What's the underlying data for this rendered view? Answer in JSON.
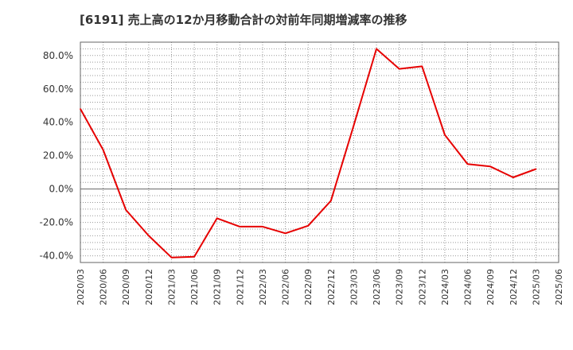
{
  "chart_data": {
    "type": "line",
    "title": "[6191]  売上高の12か月移動合計の対前年同期増減率の推移",
    "xlabel": "",
    "ylabel": "",
    "ylim": [
      -44,
      88
    ],
    "y_ticks": [
      -40,
      -20,
      0,
      20,
      40,
      60,
      80
    ],
    "y_tick_labels": [
      "-40.0%",
      "-20.0%",
      "0.0%",
      "20.0%",
      "40.0%",
      "60.0%",
      "80.0%"
    ],
    "categories": [
      "2020/03",
      "2020/06",
      "2020/09",
      "2020/12",
      "2021/03",
      "2021/06",
      "2021/09",
      "2021/12",
      "2022/03",
      "2022/06",
      "2022/09",
      "2022/12",
      "2023/03",
      "2023/06",
      "2023/09",
      "2023/12",
      "2024/03",
      "2024/06",
      "2024/09",
      "2024/12",
      "2025/03",
      "2025/06"
    ],
    "grid": true,
    "series": [
      {
        "name": "増減率",
        "color": "#e60000",
        "values": [
          48.0,
          23.5,
          -12.5,
          -28.0,
          -41.0,
          -40.5,
          -17.5,
          -22.5,
          -22.5,
          -26.5,
          -22.0,
          -7.0,
          38.0,
          84.0,
          72.0,
          73.5,
          32.5,
          15.0,
          13.5,
          7.0,
          12.0,
          null
        ]
      }
    ]
  }
}
